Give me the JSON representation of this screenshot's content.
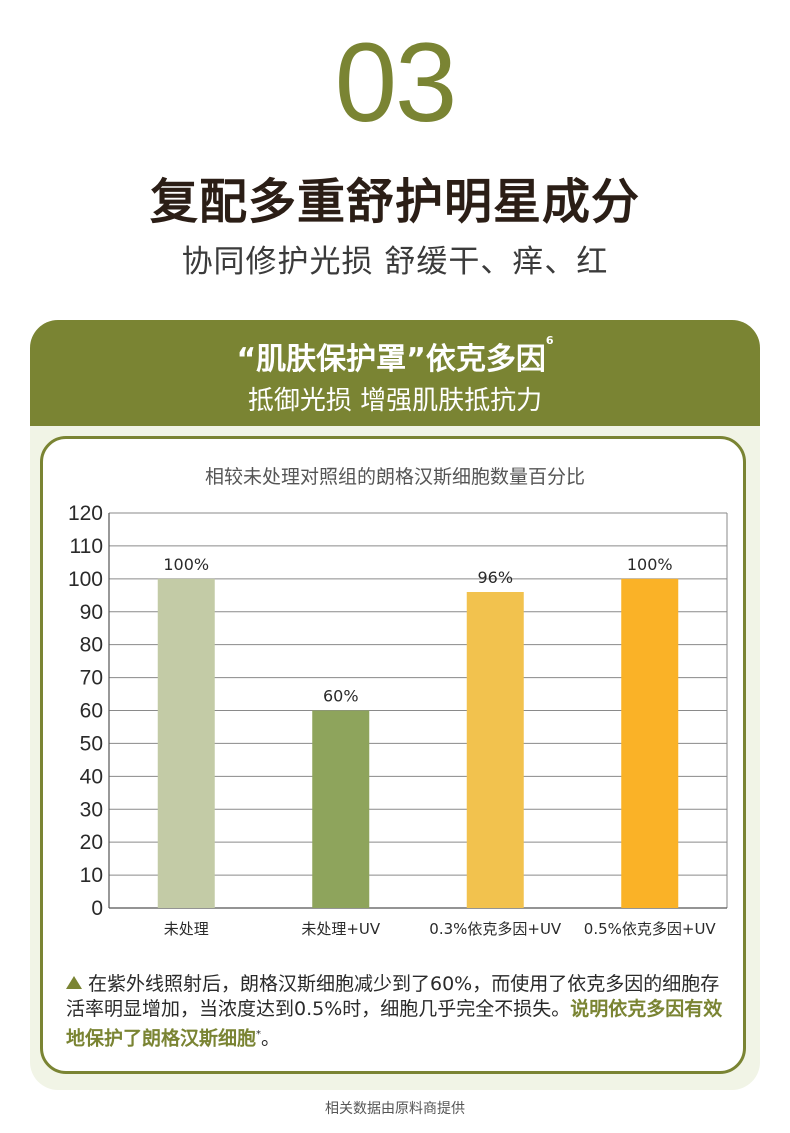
{
  "header": {
    "number": "03",
    "title": "复配多重舒护明星成分",
    "subtitle": "协同修护光损 舒缓干、痒、红"
  },
  "band": {
    "title": "“肌肤保护罩”依克多因",
    "title_sup": "6",
    "subtitle": "抵御光损 增强肌肤抵抗力"
  },
  "note": {
    "part1": "在紫外线照射后，朗格汉斯细胞减少到了60%，而使用了依克多因的细胞存活率明显增加，当浓度达到0.5%时，细胞几乎完全不损失。",
    "highlight": "说明依克多因有效地保护了朗格汉斯细胞",
    "sup": "*",
    "end": "。"
  },
  "footer": "相关数据由原料商提供",
  "colors": {
    "accent": "#7a8433",
    "bar_colors": [
      "#c3cba6",
      "#8ea45c",
      "#f2c24e",
      "#fab227"
    ]
  },
  "chart_data": {
    "type": "bar",
    "title": "相较未处理对照组的朗格汉斯细胞数量百分比",
    "categories": [
      "未处理",
      "未处理+UV",
      "0.3%依克多因+UV",
      "0.5%依克多因+UV"
    ],
    "values": [
      100,
      60,
      96,
      100
    ],
    "data_labels": [
      "100%",
      "60%",
      "96%",
      "100%"
    ],
    "ylim": [
      0,
      120
    ],
    "yticks": [
      0,
      10,
      20,
      30,
      40,
      50,
      60,
      70,
      80,
      90,
      100,
      110,
      120
    ],
    "grid": true,
    "xlabel": "",
    "ylabel": ""
  }
}
